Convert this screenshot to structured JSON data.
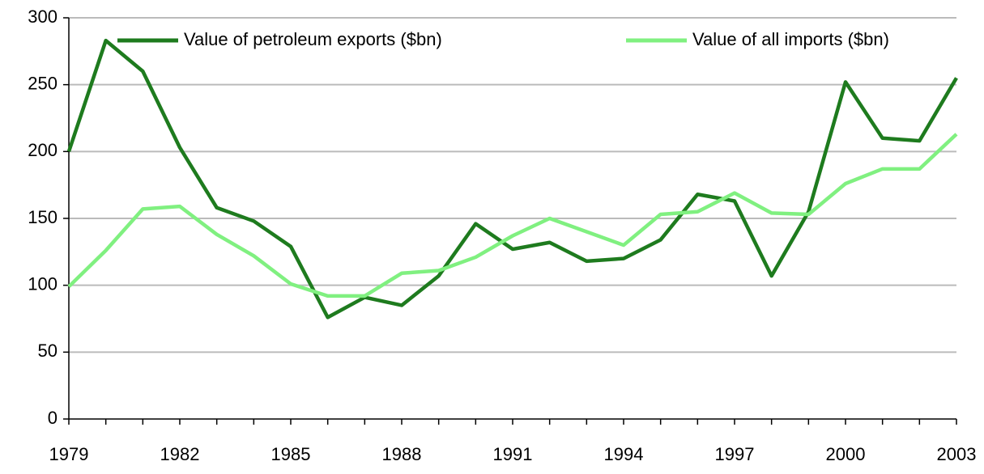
{
  "chart_data": {
    "type": "line",
    "x": [
      1979,
      1980,
      1981,
      1982,
      1983,
      1984,
      1985,
      1986,
      1987,
      1988,
      1989,
      1990,
      1991,
      1992,
      1993,
      1994,
      1995,
      1996,
      1997,
      1998,
      1999,
      2000,
      2001,
      2002,
      2003
    ],
    "series": [
      {
        "name": "Value of petroleum exports ($bn)",
        "color": "#1e7b1e",
        "values": [
          200,
          283,
          260,
          203,
          158,
          148,
          129,
          76,
          91,
          85,
          107,
          146,
          127,
          132,
          118,
          120,
          134,
          168,
          163,
          107,
          155,
          252,
          210,
          208,
          255
        ]
      },
      {
        "name": "Value of all imports ($bn)",
        "color": "#80f080",
        "values": [
          99,
          126,
          157,
          159,
          138,
          122,
          101,
          92,
          92,
          109,
          111,
          121,
          137,
          150,
          140,
          130,
          153,
          155,
          169,
          154,
          153,
          176,
          187,
          187,
          213
        ]
      }
    ],
    "xlim": [
      1979,
      2003
    ],
    "xticks": [
      1979,
      1982,
      1985,
      1988,
      1991,
      1994,
      1997,
      2000,
      2003
    ],
    "ylim": [
      0,
      300
    ],
    "yticks": [
      0,
      50,
      100,
      150,
      200,
      250,
      300
    ],
    "grid": true,
    "legend": "top"
  }
}
